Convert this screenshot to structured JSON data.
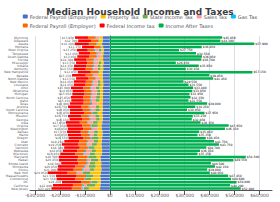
{
  "chart_data": {
    "type": "bar",
    "orientation": "horizontal",
    "stacked": true,
    "title": "Median Household Income and Taxes",
    "categories": [
      "New Jersey",
      "California",
      "DC",
      "Connecticut",
      "Massachusetts",
      "New York",
      "Illinois",
      "Minnesota",
      "Rhode Island",
      "Hawaii",
      "Maryland",
      "Wisconsin",
      "Nebraska",
      "Vermont",
      "Colorado",
      "Utah",
      "Oregon",
      "Maine",
      "Kansas",
      "Washington",
      "Virginia",
      "Iowa",
      "Georgia",
      "Missouri",
      "Pennsylvania",
      "South Carolina",
      "Arizona",
      "Texas",
      "Idaho",
      "North Carolina",
      "Michigan",
      "Oklahoma",
      "Ohio",
      "Louisiana",
      "New Mexico",
      "North Dakota",
      "Nevada",
      "New Hampshire",
      "Kentucky",
      "Indiana",
      "Mississippi",
      "Florida",
      "South Dakota",
      "Tennessee",
      "West Virginia",
      "Montana",
      "Alaska",
      "Delaware",
      "Wyoming"
    ],
    "series": [
      {
        "name": "Federal Payroll (Employee)",
        "color": "#4472C4",
        "values": [
          -3910,
          -3800,
          -3700,
          -3750,
          -3850,
          -3600,
          -3400,
          -3500,
          -3450,
          -3700,
          -3800,
          -3200,
          -3100,
          -3300,
          -3400,
          -3200,
          -3100,
          -3000,
          -3000,
          -3300,
          -3350,
          -3050,
          -2900,
          -2950,
          -3050,
          -2850,
          -2900,
          -2950,
          -2800,
          -2800,
          -2750,
          -2700,
          -2750,
          -2650,
          -2700,
          -2750,
          -2900,
          -2900,
          -2650,
          -2700,
          -2550,
          -2700,
          -2700,
          -2600,
          -2500,
          -2700,
          -3100,
          -2900,
          -2900
        ]
      },
      {
        "name": "Property Tax",
        "color": "#FFC000",
        "values": [
          -4500,
          -2000,
          -1200,
          -3800,
          -2800,
          -4200,
          -2800,
          -2200,
          -2500,
          -1000,
          -1500,
          -2800,
          -2500,
          -2800,
          -1800,
          -1500,
          -1400,
          -2000,
          -1800,
          -1600,
          -1500,
          -1800,
          -1200,
          -1300,
          -1800,
          -1200,
          -1300,
          -2000,
          -1400,
          -1200,
          -1100,
          -1200,
          -1400,
          -1000,
          -1100,
          -1200,
          -1800,
          -1500,
          -1100,
          -1000,
          -900,
          -1800,
          -900,
          -700,
          -900,
          -600,
          -1800,
          -1400,
          -1200
        ]
      },
      {
        "name": "State Income Tax",
        "color": "#70AD47",
        "values": [
          -2000,
          -3500,
          -2500,
          -2200,
          -2500,
          -3200,
          -2000,
          -2800,
          -2100,
          -3000,
          -3200,
          -2200,
          -1800,
          -2400,
          -2000,
          -1800,
          -2800,
          -1600,
          -1500,
          0,
          -2500,
          -2000,
          -1400,
          -1600,
          -2000,
          -1800,
          -1500,
          0,
          -1600,
          -1500,
          -1400,
          -1200,
          -1500,
          -1200,
          -1000,
          0,
          0,
          0,
          -1200,
          -1100,
          -1100,
          0,
          0,
          0,
          -1100,
          0,
          0,
          0,
          0
        ]
      },
      {
        "name": "Sales Tax",
        "color": "#FF9999",
        "values": [
          -500,
          -1200,
          0,
          0,
          0,
          -2000,
          -2400,
          -1500,
          -800,
          -1200,
          0,
          -2000,
          -2200,
          0,
          -1800,
          -2200,
          0,
          -1400,
          -2000,
          -2000,
          0,
          -1800,
          -2200,
          -2200,
          0,
          -1800,
          -2400,
          -2200,
          -1500,
          -2000,
          -1800,
          -2000,
          -1800,
          -2000,
          -1800,
          -1500,
          -1800,
          0,
          -1800,
          -1600,
          -1600,
          -1800,
          -1600,
          -1600,
          -1500,
          0,
          0,
          0,
          -1400
        ]
      },
      {
        "name": "Gas Tax",
        "color": "#00BFFF",
        "values": [
          -400,
          -500,
          -300,
          -350,
          -350,
          -350,
          -500,
          -350,
          -400,
          -350,
          -400,
          -450,
          -350,
          -300,
          -350,
          -350,
          -350,
          -350,
          -350,
          -450,
          -350,
          -350,
          -350,
          -350,
          -450,
          -350,
          -350,
          -400,
          -350,
          -350,
          -350,
          -350,
          -400,
          -350,
          -350,
          -350,
          -350,
          -350,
          -350,
          -350,
          -350,
          -400,
          -350,
          -350,
          -350,
          -350,
          -400,
          -300,
          -350
        ]
      },
      {
        "name": "Federal Payroll (Employer)",
        "color": "#FF6600",
        "values": [
          -3910,
          -3800,
          -3700,
          -3750,
          -3850,
          -3600,
          -3400,
          -3500,
          -3450,
          -3700,
          -3800,
          -3200,
          -3100,
          -3300,
          -3400,
          -3200,
          -3100,
          -3000,
          -3000,
          -3300,
          -3350,
          -3050,
          -2900,
          -2950,
          -3050,
          -2850,
          -2900,
          -2950,
          -2800,
          -2800,
          -2750,
          -2700,
          -2750,
          -2650,
          -2700,
          -2750,
          -2900,
          -2900,
          -2650,
          -2700,
          -2550,
          -2700,
          -2700,
          -2600,
          -2500,
          -2700,
          -3100,
          -2900,
          -2900
        ]
      },
      {
        "name": "Federal Income tax",
        "color": "#FF0000",
        "values": [
          -8200,
          -8000,
          -7800,
          -7500,
          -8200,
          -8000,
          -6500,
          -7000,
          -6800,
          -7500,
          -7800,
          -6000,
          -5800,
          -6200,
          -6500,
          -6000,
          -5800,
          -5500,
          -5500,
          -6200,
          -6300,
          -5600,
          -5200,
          -5400,
          -5700,
          -5200,
          -5400,
          -5500,
          -5000,
          -5000,
          -4900,
          -4800,
          -5000,
          -4600,
          -4800,
          -5000,
          -5400,
          -5200,
          -4800,
          -4900,
          -4500,
          -4900,
          -4800,
          -4600,
          -4400,
          -4800,
          -5700,
          -5200,
          -5200
        ]
      },
      {
        "name": "Income After Taxes",
        "color": "#00B050",
        "values": [
          52480,
          48200,
          50800,
          48600,
          47450,
          40050,
          39000,
          42150,
          40500,
          49550,
          54500,
          35150,
          36150,
          38700,
          43750,
          41750,
          38450,
          35150,
          35850,
          46150,
          47650,
          36350,
          32850,
          33250,
          37950,
          30950,
          34250,
          39000,
          31550,
          32350,
          31950,
          33050,
          33400,
          31550,
          29550,
          41450,
          39850,
          57150,
          30450,
          35650,
          26450,
          36700,
          36950,
          34550,
          27750,
          36850,
          57900,
          44300,
          45050
        ],
        "value_labels": [
          "$52,480",
          "$48,200",
          "$50,800",
          "$48,600",
          "$47,450",
          "$40,050",
          "$39,000",
          "$42,150",
          "$40,500",
          "$49,550",
          "$54,500",
          "$35,150",
          "$36,150",
          "$38,700",
          "$43,750",
          "$41,750",
          "$38,450",
          "$35,150",
          "$35,850",
          "$46,150",
          "$47,650",
          "$36,350",
          "$32,850",
          "$33,250",
          "$37,950",
          "$30,950",
          "$34,250",
          "$39,000",
          "$31,550",
          "$32,350",
          "$31,950",
          "$33,050",
          "$33,400",
          "$31,550",
          "$29,550",
          "$41,450",
          "$39,850",
          "$57,150",
          "$30,450",
          "$35,650",
          "$26,450",
          "$36,700",
          "$36,950",
          "$34,550",
          "$27,750",
          "$36,850",
          "$57,900",
          "$44,300",
          "$45,050"
        ]
      }
    ],
    "annotations": [
      {
        "text": "$23,420",
        "x": -23420,
        "y": "New Jersey"
      },
      {
        "text": "$22,800",
        "x": -22800,
        "y": "California"
      },
      {
        "text": "$19,200",
        "x": -19200,
        "y": "DC"
      },
      {
        "text": "$21,350",
        "x": -21350,
        "y": "Connecticut"
      },
      {
        "text": "$21,550",
        "x": -21550,
        "y": "Massachusetts"
      },
      {
        "text": "$24,950",
        "x": -24950,
        "y": "New York"
      },
      {
        "text": "$21,000",
        "x": -21000,
        "y": "Illinois"
      },
      {
        "text": "$20,850",
        "x": -20850,
        "y": "Minnesota"
      },
      {
        "text": "$19,500",
        "x": -19500,
        "y": "Rhode Island"
      },
      {
        "text": "$20,450",
        "x": -20450,
        "y": "Hawaii"
      },
      {
        "text": "$20,500",
        "x": -20500,
        "y": "Maryland"
      },
      {
        "text": "$19,850",
        "x": -19850,
        "y": "Wisconsin"
      },
      {
        "text": "$18,850",
        "x": -18850,
        "y": "Nebraska"
      },
      {
        "text": "$18,300",
        "x": -18300,
        "y": "Vermont"
      },
      {
        "text": "$19,250",
        "x": -19250,
        "y": "Colorado"
      },
      {
        "text": "$18,250",
        "x": -18250,
        "y": "Utah"
      },
      {
        "text": "$16,550",
        "x": -16550,
        "y": "Oregon"
      },
      {
        "text": "$16,850",
        "x": -16850,
        "y": "Maine"
      },
      {
        "text": "$17,150",
        "x": -17150,
        "y": "Kansas"
      },
      {
        "text": "$16,850",
        "x": -16850,
        "y": "Washington"
      },
      {
        "text": "$17,350",
        "x": -17350,
        "y": "Virginia"
      },
      {
        "text": "$17,650",
        "x": -17650,
        "y": "Iowa"
      },
      {
        "text": "$16,150",
        "x": -16150,
        "y": "Georgia"
      },
      {
        "text": "$16,750",
        "x": -16750,
        "y": "Missouri"
      },
      {
        "text": "$16,050",
        "x": -16050,
        "y": "Pennsylvania"
      },
      {
        "text": "$16,050",
        "x": -16050,
        "y": "South Carolina"
      },
      {
        "text": "$16,750",
        "x": -16750,
        "y": "Arizona"
      },
      {
        "text": "$16,000",
        "x": -16000,
        "y": "Texas"
      },
      {
        "text": "$15,450",
        "x": -15450,
        "y": "Idaho"
      },
      {
        "text": "$15,650",
        "x": -15650,
        "y": "North Carolina"
      },
      {
        "text": "$15,050",
        "x": -15050,
        "y": "Michigan"
      },
      {
        "text": "$14,950",
        "x": -14950,
        "y": "Oklahoma"
      },
      {
        "text": "$15,600",
        "x": -15600,
        "y": "Ohio"
      },
      {
        "text": "$14,450",
        "x": -14450,
        "y": "Louisiana"
      },
      {
        "text": "$14,450",
        "x": -14450,
        "y": "New Mexico"
      },
      {
        "text": "$13,550",
        "x": -13550,
        "y": "North Dakota"
      },
      {
        "text": "$15,150",
        "x": -15150,
        "y": "Nevada"
      },
      {
        "text": "$12,850",
        "x": -12850,
        "y": "New Hampshire"
      },
      {
        "text": "$14,550",
        "x": -14550,
        "y": "Kentucky"
      },
      {
        "text": "$14,350",
        "x": -14350,
        "y": "Indiana"
      },
      {
        "text": "$13,550",
        "x": -13550,
        "y": "Mississippi"
      },
      {
        "text": "$14,300",
        "x": -14300,
        "y": "Florida"
      },
      {
        "text": "$13,050",
        "x": -13050,
        "y": "South Dakota"
      },
      {
        "text": "$12,450",
        "x": -12450,
        "y": "Tennessee"
      },
      {
        "text": "$13,250",
        "x": -13250,
        "y": "West Virginia"
      },
      {
        "text": "$11,150",
        "x": -11150,
        "y": "Montana"
      },
      {
        "text": "$14,100",
        "x": -14100,
        "y": "Alaska"
      },
      {
        "text": "$12,700",
        "x": -12700,
        "y": "Delaware"
      },
      {
        "text": "$13,950",
        "x": -13950,
        "y": "Wyoming"
      }
    ],
    "xlim": [
      -32000,
      65000
    ],
    "xticks": [
      {
        "value": -30000,
        "label": "-$30,000"
      },
      {
        "value": -20000,
        "label": "-$20,000"
      },
      {
        "value": -10000,
        "label": "-$10,000"
      },
      {
        "value": 0,
        "label": "$0"
      },
      {
        "value": 10000,
        "label": "$10,000"
      },
      {
        "value": 20000,
        "label": "$20,000"
      },
      {
        "value": 30000,
        "label": "$30,000"
      },
      {
        "value": 40000,
        "label": "$40,000"
      },
      {
        "value": 50000,
        "label": "$50,000"
      },
      {
        "value": 60000,
        "label": "$60,000"
      }
    ],
    "grid": true,
    "legend": "top"
  }
}
